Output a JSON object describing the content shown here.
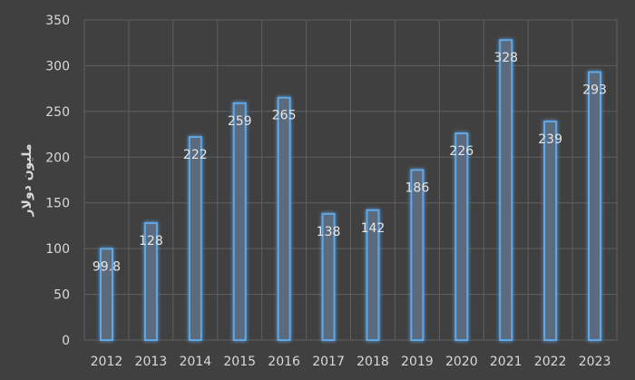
{
  "chart_data": {
    "type": "bar",
    "categories": [
      "2012",
      "2013",
      "2014",
      "2015",
      "2016",
      "2017",
      "2018",
      "2019",
      "2020",
      "2021",
      "2022",
      "2023"
    ],
    "values": [
      99.8,
      128,
      222,
      259,
      265,
      138,
      142,
      186,
      226,
      328,
      239,
      293
    ],
    "data_labels": [
      "99.8",
      "128",
      "222",
      "259",
      "265",
      "138",
      "142",
      "186",
      "226",
      "328",
      "239",
      "293"
    ],
    "ylabel": "مليون دولار",
    "ylim": [
      0,
      350
    ],
    "yticks": [
      0,
      50,
      100,
      150,
      200,
      250,
      300,
      350
    ],
    "grid": true,
    "legend": "none",
    "colors": {
      "background": "#404040",
      "bar_fill": "#5b6b7e",
      "bar_edge": "#5fa8e8",
      "glow": "#3d8fdb",
      "grid": "#5f5f5f",
      "text": "#d9d9d9"
    }
  }
}
